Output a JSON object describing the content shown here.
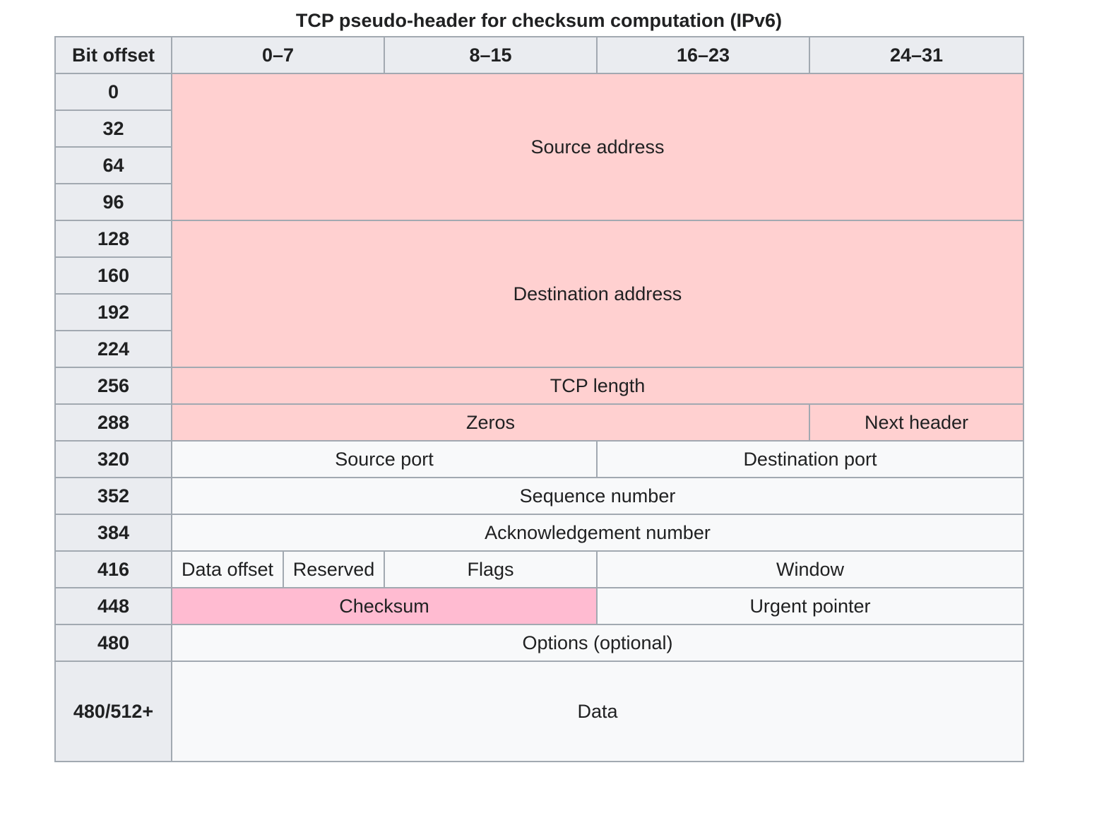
{
  "caption": "TCP pseudo-header for checksum computation (IPv6)",
  "header": {
    "bit_offset": "Bit offset",
    "cols": [
      "0–7",
      "8–15",
      "16–23",
      "24–31"
    ]
  },
  "offsets": [
    "0",
    "32",
    "64",
    "96",
    "128",
    "160",
    "192",
    "224",
    "256",
    "288",
    "320",
    "352",
    "384",
    "416",
    "448",
    "480",
    "480/512+"
  ],
  "fields": {
    "source_address": "Source address",
    "destination_address": "Destination address",
    "tcp_length": "TCP length",
    "zeros": "Zeros",
    "next_header": "Next header",
    "source_port": "Source port",
    "destination_port": "Destination port",
    "sequence_number": "Sequence number",
    "ack_number": "Acknowledgement number",
    "data_offset": "Data offset",
    "reserved": "Reserved",
    "flags": "Flags",
    "window": "Window",
    "checksum": "Checksum",
    "urgent_pointer": "Urgent pointer",
    "options": "Options (optional)",
    "data": "Data"
  },
  "colors": {
    "header_bg": "#eaecf0",
    "cell_bg": "#f8f9fa",
    "pseudo_header_bg": "#ffd0d0",
    "checksum_bg": "#ffbbd1",
    "border": "#a2a9b1"
  }
}
